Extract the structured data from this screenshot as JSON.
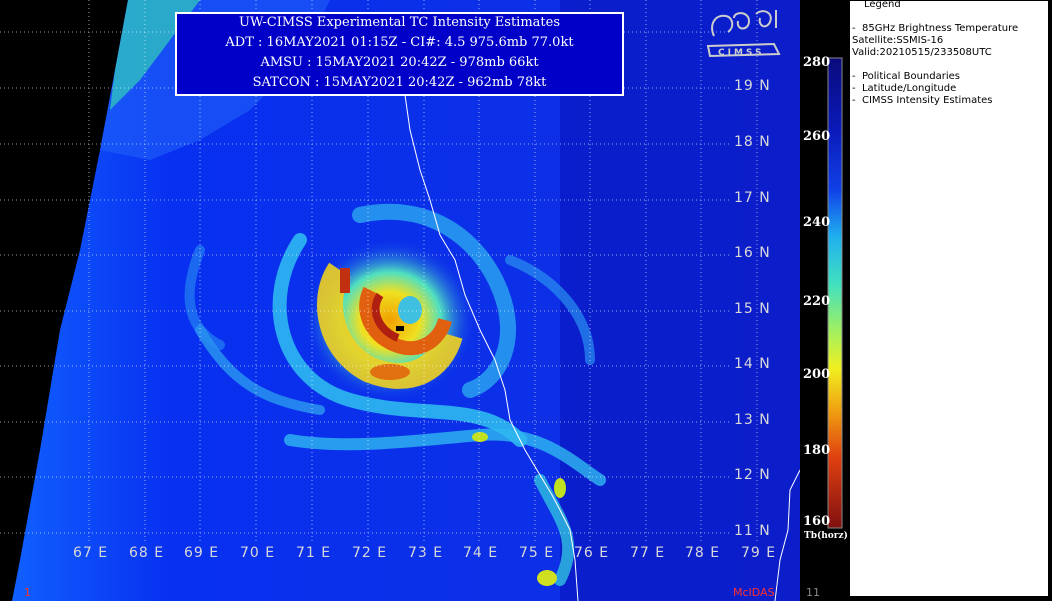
{
  "header": {
    "line1": "UW-CIMSS Experimental TC Intensity Estimates",
    "line2": "ADT : 16MAY2021 01:15Z  -   CI#: 4.5   975.6mb   77.0kt",
    "line3": "AMSU : 15MAY2021 20:42Z  -   978mb   66kt",
    "line4": "SATCON : 15MAY2021 20:42Z  -   962mb   78kt"
  },
  "legend": {
    "title": "Legend",
    "product": "85GHz Brightness Temperature",
    "satellite": "Satellite:SSMIS-16",
    "valid": "Valid:20210515/233508UTC",
    "overlays": [
      "Political Boundaries",
      "Latitude/Longitude",
      "CIMSS Intensity Estimates"
    ]
  },
  "colorbar": {
    "labels": [
      "280",
      "260",
      "240",
      "220",
      "200",
      "180",
      "160"
    ],
    "units": "Tb(horz)",
    "colors": [
      "#0a0a8c",
      "#1030e0",
      "#20b8e8",
      "#60e8a0",
      "#f0f020",
      "#f08010",
      "#d02010",
      "#8a1010"
    ]
  },
  "lat_labels": [
    "19 N",
    "18 N",
    "17 N",
    "16 N",
    "15 N",
    "14 N",
    "13 N",
    "12 N",
    "11 N"
  ],
  "lon_labels": [
    "67 E",
    "68 E",
    "69 E",
    "70 E",
    "71 E",
    "72 E",
    "73 E",
    "74 E",
    "75 E",
    "76 E",
    "77 E",
    "78 E",
    "79 E"
  ],
  "footer": {
    "left": "1",
    "center": "McIDAS",
    "right": "11"
  },
  "logo_text": "CIMSS"
}
